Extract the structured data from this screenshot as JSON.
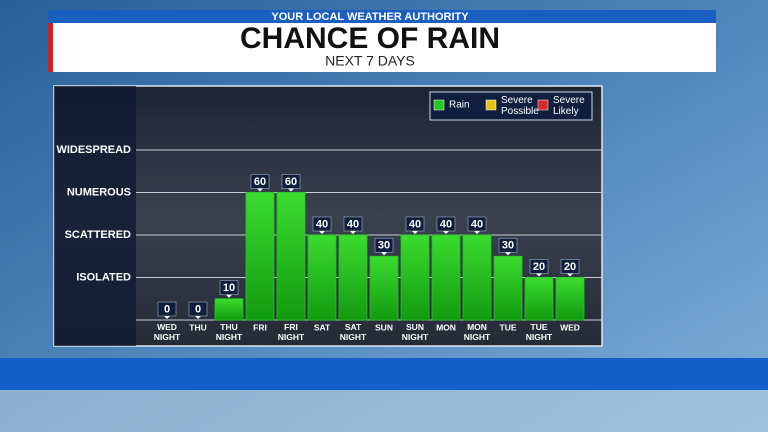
{
  "chart_data": {
    "type": "bar",
    "header": "YOUR LOCAL WEATHER AUTHORITY",
    "title": "CHANCE OF RAIN",
    "subtitle": "NEXT 7 DAYS",
    "categories": [
      "WED NIGHT",
      "THU",
      "THU NIGHT",
      "FRI",
      "FRI NIGHT",
      "SAT",
      "SAT NIGHT",
      "SUN",
      "SUN NIGHT",
      "MON",
      "MON NIGHT",
      "TUE",
      "TUE NIGHT",
      "WED"
    ],
    "series": [
      {
        "name": "Rain",
        "color": "#22c81e",
        "values": [
          0,
          0,
          10,
          60,
          60,
          40,
          40,
          30,
          40,
          40,
          40,
          30,
          20,
          20
        ]
      }
    ],
    "legend_items": [
      {
        "name": "Severe Possible",
        "color": "#e8c21a"
      },
      {
        "name": "Severe Likely",
        "color": "#d42a2a"
      }
    ],
    "ylim": [
      0,
      100
    ],
    "yticks": [
      {
        "value": 20,
        "label": "ISOLATED"
      },
      {
        "value": 40,
        "label": "SCATTERED"
      },
      {
        "value": 60,
        "label": "NUMEROUS"
      },
      {
        "value": 80,
        "label": "WIDESPREAD"
      }
    ],
    "grid": true
  }
}
